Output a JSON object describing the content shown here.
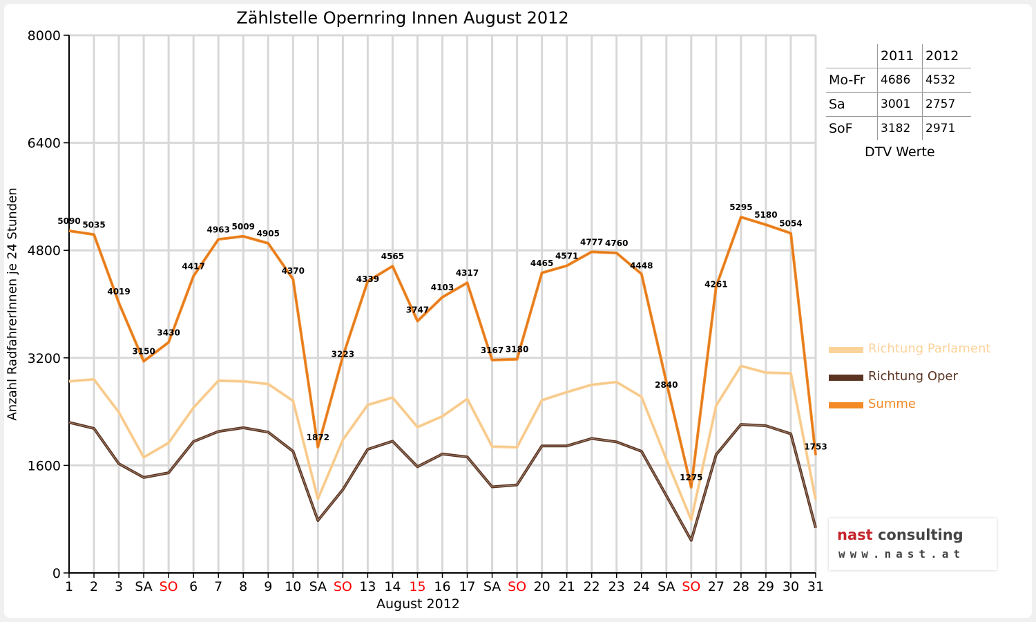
{
  "chart_data": {
    "type": "line",
    "title": "Zählstelle Opernring Innen August 2012",
    "xlabel": "August 2012",
    "ylabel": "Anzahl RadfahrerInnen je 24 Stunden",
    "ylim": [
      0,
      8000
    ],
    "yticks": [
      0,
      1600,
      3200,
      4800,
      6400,
      8000
    ],
    "grid": true,
    "legend_position": "right",
    "categories": [
      "1",
      "2",
      "3",
      "SA",
      "SO",
      "6",
      "7",
      "8",
      "9",
      "10",
      "SA",
      "SO",
      "13",
      "14",
      "15",
      "16",
      "17",
      "SA",
      "SO",
      "20",
      "21",
      "22",
      "23",
      "24",
      "SA",
      "SO",
      "27",
      "28",
      "29",
      "30",
      "31"
    ],
    "highlight_color": "#ff0000",
    "red_tick_indices": [
      4,
      11,
      14,
      18,
      25
    ],
    "series": [
      {
        "name": "Richtung Parlament",
        "color": "#fbd39a",
        "values": [
          2850,
          2880,
          2390,
          1720,
          1935,
          2460,
          2860,
          2850,
          2810,
          2560,
          1100,
          1980,
          2500,
          2610,
          2170,
          2330,
          2590,
          1880,
          1870,
          2570,
          2690,
          2800,
          2840,
          2620,
          1690,
          790,
          2490,
          3080,
          2980,
          2970,
          1090
        ]
      },
      {
        "name": "Richtung Oper",
        "color": "#5a3421",
        "values": [
          2240,
          2150,
          1625,
          1420,
          1490,
          1955,
          2105,
          2160,
          2095,
          1810,
          780,
          1240,
          1840,
          1960,
          1580,
          1770,
          1725,
          1280,
          1310,
          1890,
          1890,
          2000,
          1950,
          1810,
          1150,
          485,
          1760,
          2210,
          2190,
          2070,
          670
        ]
      },
      {
        "name": "Summe",
        "color": "#f28a26",
        "values": [
          5090,
          5035,
          4019,
          3150,
          3430,
          4417,
          4963,
          5009,
          4905,
          4370,
          1872,
          3223,
          4339,
          4565,
          3747,
          4103,
          4317,
          3167,
          3180,
          4465,
          4571,
          4777,
          4760,
          4448,
          2840,
          1275,
          4261,
          5295,
          5180,
          5054,
          1753
        ]
      }
    ]
  },
  "dtv_table": {
    "caption": "DTV Werte",
    "headers": [
      "",
      "2011",
      "2012"
    ],
    "rows": [
      [
        "Mo-Fr",
        "4686",
        "4532"
      ],
      [
        "Sa",
        "3001",
        "2757"
      ],
      [
        "SoF",
        "3182",
        "2971"
      ]
    ]
  },
  "logo": {
    "word1": "nast",
    "word2": "consulting",
    "url": "www.nast.at"
  }
}
